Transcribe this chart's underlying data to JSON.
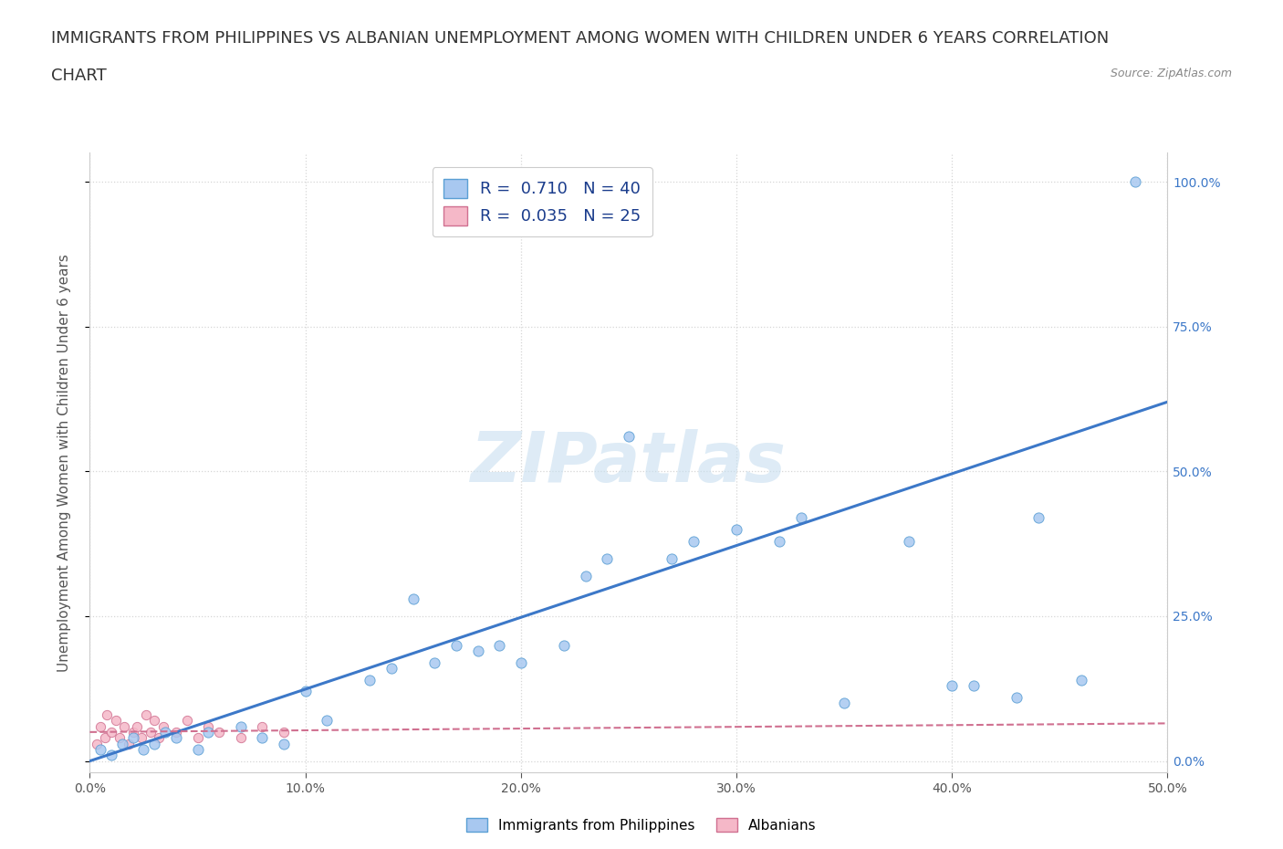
{
  "title_line1": "IMMIGRANTS FROM PHILIPPINES VS ALBANIAN UNEMPLOYMENT AMONG WOMEN WITH CHILDREN UNDER 6 YEARS CORRELATION",
  "title_line2": "CHART",
  "source": "Source: ZipAtlas.com",
  "watermark": "ZIPatlas",
  "ylabel": "Unemployment Among Women with Children Under 6 years",
  "xlim": [
    0.0,
    0.5
  ],
  "ylim": [
    -0.02,
    1.05
  ],
  "xticks": [
    0.0,
    0.1,
    0.2,
    0.3,
    0.4,
    0.5
  ],
  "yticks": [
    0.0,
    0.25,
    0.5,
    0.75,
    1.0
  ],
  "xticklabels": [
    "0.0%",
    "10.0%",
    "20.0%",
    "30.0%",
    "40.0%",
    "50.0%"
  ],
  "yticklabels_right": [
    "0.0%",
    "25.0%",
    "50.0%",
    "75.0%",
    "100.0%"
  ],
  "blue_R": 0.71,
  "blue_N": 40,
  "pink_R": 0.035,
  "pink_N": 25,
  "blue_color": "#a8c8f0",
  "blue_edge": "#5a9fd4",
  "blue_line_color": "#3c78c8",
  "pink_color": "#f5b8c8",
  "pink_edge": "#d07090",
  "pink_line_color": "#d07090",
  "legend_text_color": "#1a3c8c",
  "background_color": "#ffffff",
  "blue_scatter_x": [
    0.005,
    0.01,
    0.015,
    0.02,
    0.025,
    0.03,
    0.035,
    0.04,
    0.05,
    0.055,
    0.07,
    0.08,
    0.09,
    0.1,
    0.11,
    0.13,
    0.14,
    0.15,
    0.16,
    0.17,
    0.18,
    0.19,
    0.2,
    0.22,
    0.23,
    0.24,
    0.25,
    0.27,
    0.28,
    0.3,
    0.32,
    0.33,
    0.35,
    0.38,
    0.4,
    0.41,
    0.43,
    0.44,
    0.46,
    0.485
  ],
  "blue_scatter_y": [
    0.02,
    0.01,
    0.03,
    0.04,
    0.02,
    0.03,
    0.05,
    0.04,
    0.02,
    0.05,
    0.06,
    0.04,
    0.03,
    0.12,
    0.07,
    0.14,
    0.16,
    0.28,
    0.17,
    0.2,
    0.19,
    0.2,
    0.17,
    0.2,
    0.32,
    0.35,
    0.56,
    0.35,
    0.38,
    0.4,
    0.38,
    0.42,
    0.1,
    0.38,
    0.13,
    0.13,
    0.11,
    0.42,
    0.14,
    1.0
  ],
  "pink_scatter_x": [
    0.003,
    0.005,
    0.007,
    0.008,
    0.01,
    0.012,
    0.014,
    0.016,
    0.018,
    0.02,
    0.022,
    0.024,
    0.026,
    0.028,
    0.03,
    0.032,
    0.034,
    0.04,
    0.045,
    0.05,
    0.055,
    0.06,
    0.07,
    0.08,
    0.09
  ],
  "pink_scatter_y": [
    0.03,
    0.06,
    0.04,
    0.08,
    0.05,
    0.07,
    0.04,
    0.06,
    0.03,
    0.05,
    0.06,
    0.04,
    0.08,
    0.05,
    0.07,
    0.04,
    0.06,
    0.05,
    0.07,
    0.04,
    0.06,
    0.05,
    0.04,
    0.06,
    0.05
  ],
  "blue_trend_x": [
    0.0,
    0.5
  ],
  "blue_trend_y": [
    0.0,
    0.62
  ],
  "pink_trend_x": [
    0.0,
    0.5
  ],
  "pink_trend_y": [
    0.05,
    0.065
  ],
  "grid_color": "#cccccc",
  "title_fontsize": 13,
  "axis_label_fontsize": 11,
  "tick_fontsize": 10,
  "legend_fontsize": 13,
  "watermark_fontsize": 55,
  "watermark_color": "#c8dff0",
  "watermark_alpha": 0.6
}
